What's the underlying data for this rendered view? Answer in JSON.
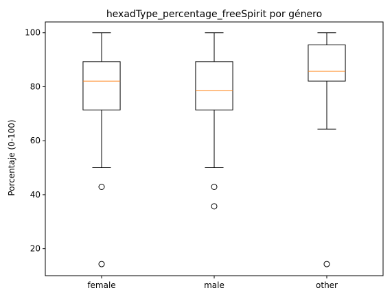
{
  "chart_data": {
    "type": "box",
    "title": "hexadType_percentage_freeSpirit por género",
    "xlabel": "",
    "ylabel": "Porcentaje (0-100)",
    "ylim": [
      10,
      104
    ],
    "yticks": [
      20,
      40,
      60,
      80,
      100
    ],
    "categories": [
      "female",
      "male",
      "other"
    ],
    "series": [
      {
        "whisker_low": 50.0,
        "q1": 71.4,
        "median": 82.1,
        "q3": 89.3,
        "whisker_high": 100.0,
        "outliers": [
          42.9,
          14.3
        ]
      },
      {
        "whisker_low": 50.0,
        "q1": 71.4,
        "median": 78.6,
        "q3": 89.3,
        "whisker_high": 100.0,
        "outliers": [
          42.9,
          35.7
        ]
      },
      {
        "whisker_low": 64.3,
        "q1": 82.1,
        "median": 85.7,
        "q3": 95.5,
        "whisker_high": 100.0,
        "outliers": [
          14.3
        ]
      }
    ],
    "grid": false,
    "colors": {
      "box": "#000000",
      "median": "#ff7f0e",
      "outlier_edge": "#000000"
    }
  }
}
